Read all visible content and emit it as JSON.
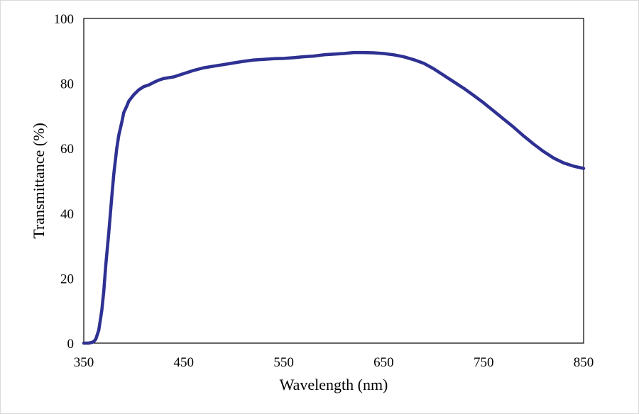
{
  "chart_data": {
    "type": "line",
    "xlabel": "Wavelength (nm)",
    "ylabel": "Transmittance (%)",
    "xlim": [
      350,
      850
    ],
    "ylim": [
      0,
      100
    ],
    "xticks": [
      350,
      450,
      550,
      650,
      750,
      850
    ],
    "yticks": [
      0,
      20,
      40,
      60,
      80,
      100
    ],
    "grid": false,
    "legend": "none",
    "line_color": "#2e3192",
    "series": [
      {
        "x": [
          350,
          355,
          358,
          360,
          362,
          365,
          368,
          370,
          372,
          375,
          378,
          380,
          383,
          385,
          388,
          390,
          393,
          395,
          400,
          405,
          410,
          415,
          420,
          425,
          430,
          440,
          450,
          460,
          470,
          480,
          490,
          500,
          510,
          520,
          530,
          540,
          550,
          560,
          570,
          580,
          590,
          600,
          610,
          620,
          630,
          640,
          650,
          660,
          670,
          680,
          690,
          700,
          710,
          720,
          730,
          740,
          750,
          760,
          770,
          780,
          790,
          800,
          810,
          820,
          830,
          840,
          850
        ],
        "y": [
          0,
          0,
          0.2,
          0.5,
          1.2,
          4,
          10,
          16,
          24,
          34,
          45,
          52,
          60,
          64,
          68,
          71,
          73,
          74.5,
          76.5,
          78,
          79,
          79.5,
          80.3,
          81,
          81.5,
          82,
          83,
          84,
          84.8,
          85.3,
          85.8,
          86.3,
          86.8,
          87.2,
          87.4,
          87.6,
          87.7,
          87.9,
          88.2,
          88.4,
          88.8,
          89,
          89.2,
          89.5,
          89.5,
          89.4,
          89.2,
          88.8,
          88.2,
          87.3,
          86.2,
          84.5,
          82.5,
          80.5,
          78.5,
          76.3,
          74,
          71.5,
          69,
          66.5,
          63.8,
          61.3,
          59,
          57,
          55.5,
          54.5,
          53.8
        ]
      }
    ]
  }
}
